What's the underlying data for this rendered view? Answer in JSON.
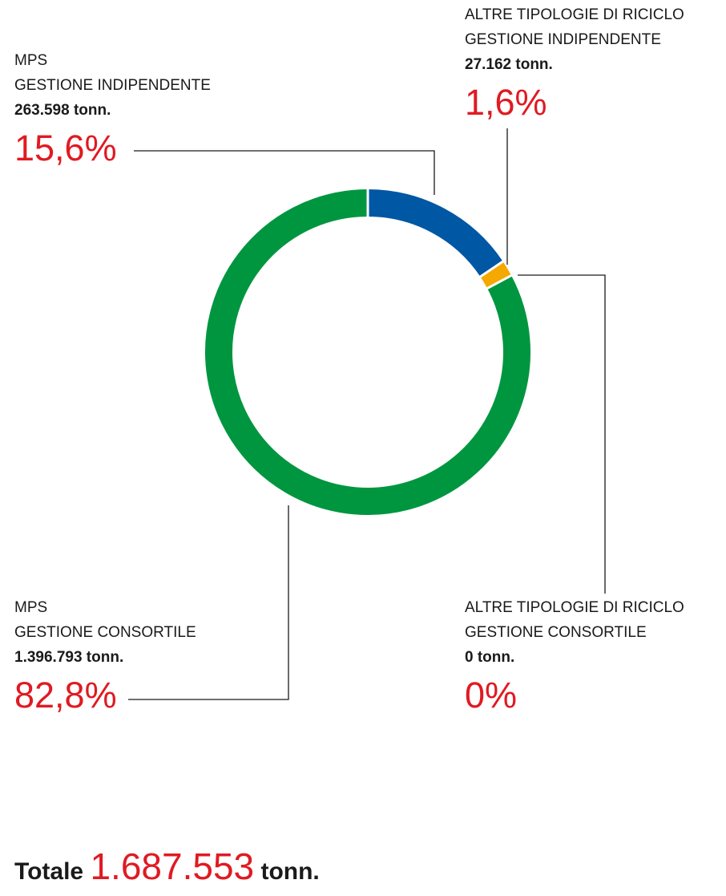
{
  "chart_data": {
    "type": "pie",
    "categories": [
      "MPS GESTIONE INDIPENDENTE",
      "ALTRE TIPOLOGIE DI RICICLO GESTIONE INDIPENDENTE",
      "MPS GESTIONE CONSORTILE",
      "ALTRE TIPOLOGIE DI RICICLO GESTIONE CONSORTILE"
    ],
    "values": [
      15.6,
      1.6,
      82.8,
      0
    ],
    "tonnes": [
      263598,
      27162,
      1396793,
      0
    ],
    "colors": [
      "#0057a4",
      "#f5a800",
      "#00963f",
      "#b0b0b0"
    ],
    "donut": true
  },
  "labels": {
    "mps_ind": {
      "line1": "MPS",
      "line2": "GESTIONE INDIPENDENTE",
      "tons": "263.598 tonn.",
      "pct": "15,6%"
    },
    "alt_ind": {
      "line1": "ALTRE TIPOLOGIE DI RICICLO",
      "line2": "GESTIONE INDIPENDENTE",
      "tons": "27.162 tonn.",
      "pct": "1,6%"
    },
    "mps_con": {
      "line1": "MPS",
      "line2": "GESTIONE CONSORTILE",
      "tons": "1.396.793 tonn.",
      "pct": "82,8%"
    },
    "alt_con": {
      "line1": "ALTRE TIPOLOGIE DI RICICLO",
      "line2": "GESTIONE CONSORTILE",
      "tons": "0 tonn.",
      "pct": "0%"
    }
  },
  "total": {
    "label": "Totale",
    "value": "1.687.553",
    "unit": "tonn."
  },
  "colors": {
    "accent": "#e01a22",
    "leader": "#1a1a1a"
  }
}
